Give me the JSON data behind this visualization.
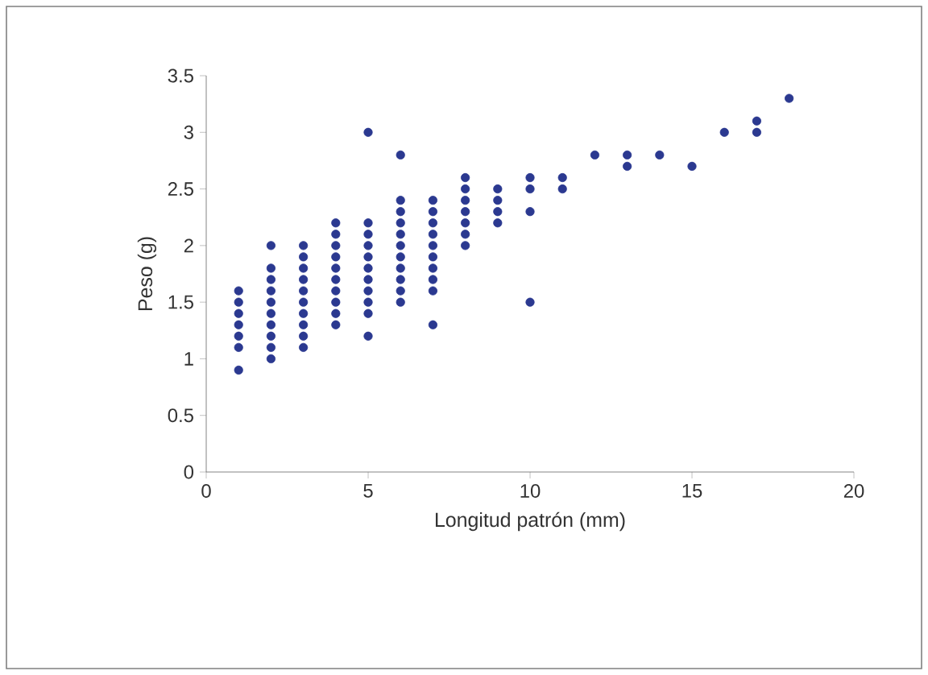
{
  "chart_data": {
    "type": "scatter",
    "xlabel": "Longitud patrón (mm)",
    "ylabel": "Peso (g)",
    "xlim": [
      0,
      20
    ],
    "ylim": [
      0,
      3.5
    ],
    "xticks": [
      0,
      5,
      10,
      15,
      20
    ],
    "yticks": [
      0,
      0.5,
      1,
      1.5,
      2,
      2.5,
      3,
      3.5
    ],
    "grid": false,
    "marker": "circle",
    "series": [
      {
        "color": "#2b3990",
        "x": [
          1,
          1,
          1,
          1,
          1,
          1,
          1,
          2,
          2,
          2,
          2,
          2,
          2,
          2,
          2,
          2,
          2,
          3,
          3,
          3,
          3,
          3,
          3,
          3,
          3,
          3,
          3,
          4,
          4,
          4,
          4,
          4,
          4,
          4,
          4,
          4,
          4,
          5,
          5,
          5,
          5,
          5,
          5,
          5,
          5,
          5,
          5,
          5,
          6,
          6,
          6,
          6,
          6,
          6,
          6,
          6,
          6,
          6,
          6,
          7,
          7,
          7,
          7,
          7,
          7,
          7,
          7,
          7,
          7,
          8,
          8,
          8,
          8,
          8,
          8,
          8,
          9,
          9,
          9,
          9,
          10,
          10,
          10,
          10,
          11,
          11,
          12,
          13,
          13,
          14,
          15,
          16,
          17,
          17,
          18
        ],
        "values": [
          0.9,
          1.1,
          1.2,
          1.3,
          1.4,
          1.5,
          1.6,
          1.0,
          1.1,
          1.2,
          1.3,
          1.4,
          1.5,
          1.6,
          1.7,
          1.8,
          2.0,
          1.1,
          1.2,
          1.3,
          1.4,
          1.5,
          1.6,
          1.7,
          1.8,
          1.9,
          2.0,
          1.3,
          1.4,
          1.5,
          1.6,
          1.7,
          1.8,
          1.9,
          2.0,
          2.1,
          2.2,
          1.2,
          1.4,
          1.5,
          1.6,
          1.7,
          1.8,
          1.9,
          2.0,
          2.1,
          2.2,
          3.0,
          1.5,
          1.6,
          1.7,
          1.8,
          1.9,
          2.0,
          2.1,
          2.2,
          2.3,
          2.4,
          2.8,
          1.3,
          1.6,
          1.7,
          1.8,
          1.9,
          2.0,
          2.1,
          2.2,
          2.3,
          2.4,
          2.0,
          2.1,
          2.2,
          2.3,
          2.4,
          2.5,
          2.6,
          2.2,
          2.3,
          2.4,
          2.5,
          1.5,
          2.3,
          2.5,
          2.6,
          2.5,
          2.6,
          2.8,
          2.7,
          2.8,
          2.8,
          2.7,
          3.0,
          3.0,
          3.1,
          3.3
        ]
      }
    ]
  }
}
